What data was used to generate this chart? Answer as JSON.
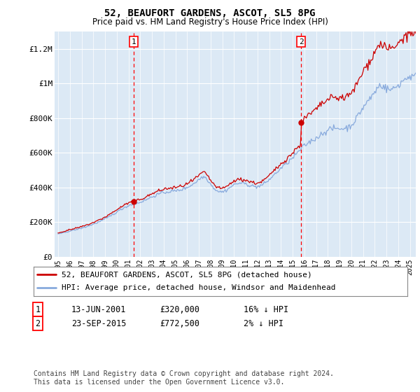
{
  "title": "52, BEAUFORT GARDENS, ASCOT, SL5 8PG",
  "subtitle": "Price paid vs. HM Land Registry's House Price Index (HPI)",
  "plot_bg_color": "#dce9f5",
  "hpi_color": "#88aadd",
  "price_color": "#cc0000",
  "ylim": [
    0,
    1300000
  ],
  "yticks": [
    0,
    200000,
    400000,
    600000,
    800000,
    1000000,
    1200000
  ],
  "ytick_labels": [
    "£0",
    "£200K",
    "£400K",
    "£600K",
    "£800K",
    "£1M",
    "£1.2M"
  ],
  "sale1_x": 2001.45,
  "sale1_price": 320000,
  "sale2_x": 2015.73,
  "sale2_price": 772500,
  "legend_line1": "52, BEAUFORT GARDENS, ASCOT, SL5 8PG (detached house)",
  "legend_line2": "HPI: Average price, detached house, Windsor and Maidenhead",
  "note1_label": "1",
  "note1_date": "13-JUN-2001",
  "note1_price": "£320,000",
  "note1_hpi": "16% ↓ HPI",
  "note2_label": "2",
  "note2_date": "23-SEP-2015",
  "note2_price": "£772,500",
  "note2_hpi": "2% ↓ HPI",
  "footer": "Contains HM Land Registry data © Crown copyright and database right 2024.\nThis data is licensed under the Open Government Licence v3.0."
}
